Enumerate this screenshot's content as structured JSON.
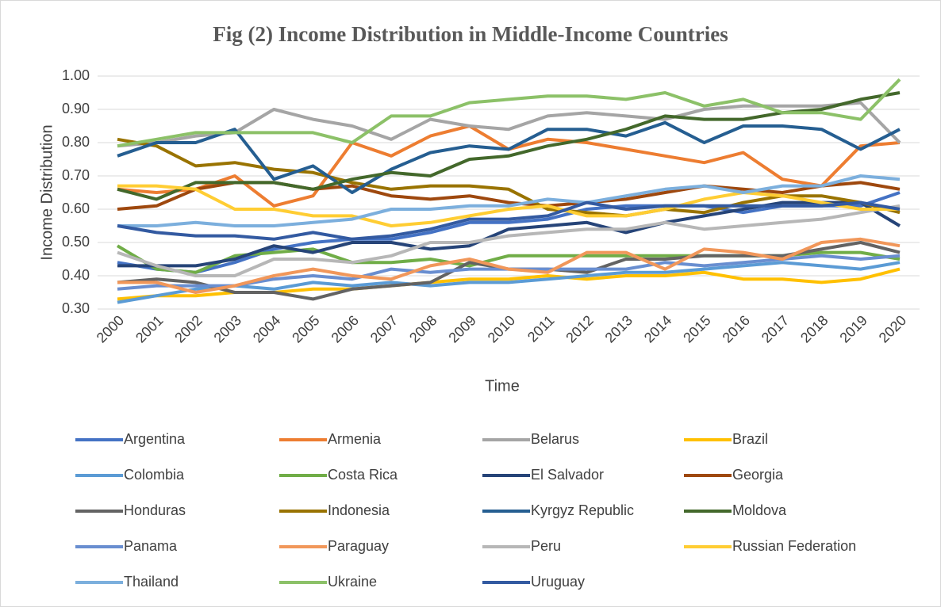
{
  "chart_data": {
    "type": "line",
    "title": "Fig (2) Income Distribution in Middle-Income Countries",
    "x_label": "Time",
    "y_label": "Income Distribution",
    "categories": [
      "2000",
      "2001",
      "2002",
      "2003",
      "2004",
      "2005",
      "2006",
      "2007",
      "2008",
      "2009",
      "2010",
      "2011",
      "2012",
      "2013",
      "2014",
      "2015",
      "2016",
      "2017",
      "2018",
      "2019",
      "2020"
    ],
    "ylim": [
      0.3,
      1.0
    ],
    "yticks": [
      {
        "value": 0.3,
        "label": "0.30"
      },
      {
        "value": 0.4,
        "label": "0.40"
      },
      {
        "value": 0.5,
        "label": "0.50"
      },
      {
        "value": 0.6,
        "label": "0.60"
      },
      {
        "value": 0.7,
        "label": "0.70"
      },
      {
        "value": 0.8,
        "label": "0.80"
      },
      {
        "value": 0.9,
        "label": "0.90"
      },
      {
        "value": 1.0,
        "label": "1.00"
      }
    ],
    "grid": true,
    "series": [
      {
        "name": "Argentina",
        "color": "#4472c4",
        "values": [
          0.44,
          0.42,
          0.41,
          0.44,
          0.48,
          0.5,
          0.51,
          0.51,
          0.53,
          0.56,
          0.56,
          0.57,
          0.6,
          0.61,
          0.61,
          0.61,
          0.59,
          0.61,
          0.61,
          0.61,
          0.65
        ]
      },
      {
        "name": "Armenia",
        "color": "#ed7d31",
        "values": [
          0.66,
          0.65,
          0.66,
          0.7,
          0.61,
          0.64,
          0.8,
          0.76,
          0.82,
          0.85,
          0.78,
          0.81,
          0.8,
          0.78,
          0.76,
          0.74,
          0.77,
          0.69,
          0.67,
          0.79,
          0.8
        ]
      },
      {
        "name": "Belarus",
        "color": "#a5a5a5",
        "values": [
          0.79,
          0.8,
          0.82,
          0.83,
          0.9,
          0.87,
          0.85,
          0.81,
          0.87,
          0.85,
          0.84,
          0.88,
          0.89,
          0.88,
          0.87,
          0.9,
          0.91,
          0.91,
          0.91,
          0.92,
          0.8
        ]
      },
      {
        "name": "Brazil",
        "color": "#ffc000",
        "values": [
          0.33,
          0.34,
          0.34,
          0.35,
          0.35,
          0.36,
          0.36,
          0.37,
          0.38,
          0.39,
          0.39,
          0.4,
          0.39,
          0.4,
          0.4,
          0.41,
          0.39,
          0.39,
          0.38,
          0.39,
          0.42
        ]
      },
      {
        "name": "Colombia",
        "color": "#5b9bd5",
        "values": [
          0.32,
          0.34,
          0.36,
          0.37,
          0.36,
          0.38,
          0.37,
          0.38,
          0.37,
          0.38,
          0.38,
          0.39,
          0.4,
          0.41,
          0.41,
          0.42,
          0.43,
          0.44,
          0.43,
          0.42,
          0.44
        ]
      },
      {
        "name": "Costa Rica",
        "color": "#70ad47",
        "values": [
          0.49,
          0.42,
          0.41,
          0.46,
          0.47,
          0.48,
          0.44,
          0.44,
          0.45,
          0.43,
          0.46,
          0.46,
          0.46,
          0.46,
          0.46,
          0.46,
          0.46,
          0.46,
          0.47,
          0.47,
          0.45
        ]
      },
      {
        "name": "El Salvador",
        "color": "#264478",
        "values": [
          0.43,
          0.43,
          0.43,
          0.45,
          0.49,
          0.47,
          0.5,
          0.5,
          0.48,
          0.49,
          0.54,
          0.55,
          0.56,
          0.53,
          0.56,
          0.58,
          0.6,
          0.62,
          0.62,
          0.62,
          0.55
        ]
      },
      {
        "name": "Georgia",
        "color": "#9e480e",
        "values": [
          0.6,
          0.61,
          0.66,
          0.68,
          0.68,
          0.66,
          0.67,
          0.64,
          0.63,
          0.64,
          0.62,
          0.61,
          0.62,
          0.63,
          0.65,
          0.67,
          0.66,
          0.65,
          0.67,
          0.68,
          0.66
        ]
      },
      {
        "name": "Honduras",
        "color": "#636363",
        "values": [
          0.38,
          0.39,
          0.38,
          0.35,
          0.35,
          0.33,
          0.36,
          0.37,
          0.38,
          0.44,
          0.42,
          0.42,
          0.41,
          0.45,
          0.45,
          0.46,
          0.46,
          0.46,
          0.48,
          0.5,
          0.47
        ]
      },
      {
        "name": "Indonesia",
        "color": "#997300",
        "values": [
          0.81,
          0.79,
          0.73,
          0.74,
          0.72,
          0.71,
          0.68,
          0.66,
          0.67,
          0.67,
          0.66,
          0.6,
          0.59,
          0.58,
          0.6,
          0.59,
          0.62,
          0.64,
          0.64,
          0.62,
          0.59
        ]
      },
      {
        "name": "Kyrgyz Republic",
        "color": "#255e91",
        "values": [
          0.76,
          0.8,
          0.8,
          0.84,
          0.69,
          0.73,
          0.65,
          0.72,
          0.77,
          0.79,
          0.78,
          0.84,
          0.84,
          0.82,
          0.86,
          0.8,
          0.85,
          0.85,
          0.84,
          0.78,
          0.84
        ]
      },
      {
        "name": "Moldova",
        "color": "#43682b",
        "values": [
          0.66,
          0.63,
          0.68,
          0.68,
          0.68,
          0.66,
          0.69,
          0.71,
          0.7,
          0.75,
          0.76,
          0.79,
          0.81,
          0.84,
          0.88,
          0.87,
          0.87,
          0.89,
          0.9,
          0.93,
          0.95
        ]
      },
      {
        "name": "Panama",
        "color": "#698ed0",
        "values": [
          0.36,
          0.37,
          0.37,
          0.37,
          0.39,
          0.4,
          0.39,
          0.42,
          0.41,
          0.42,
          0.42,
          0.42,
          0.42,
          0.42,
          0.44,
          0.43,
          0.44,
          0.45,
          0.46,
          0.45,
          0.46
        ]
      },
      {
        "name": "Paraguay",
        "color": "#f1975a",
        "values": [
          0.38,
          0.38,
          0.35,
          0.37,
          0.4,
          0.42,
          0.4,
          0.39,
          0.43,
          0.45,
          0.42,
          0.41,
          0.47,
          0.47,
          0.42,
          0.48,
          0.47,
          0.45,
          0.5,
          0.51,
          0.49
        ]
      },
      {
        "name": "Peru",
        "color": "#b7b7b7",
        "values": [
          0.47,
          0.43,
          0.4,
          0.4,
          0.45,
          0.45,
          0.44,
          0.46,
          0.5,
          0.5,
          0.52,
          0.53,
          0.54,
          0.54,
          0.56,
          0.54,
          0.55,
          0.56,
          0.57,
          0.59,
          0.61
        ]
      },
      {
        "name": "Russian Federation",
        "color": "#ffcd33",
        "values": [
          0.67,
          0.67,
          0.66,
          0.6,
          0.6,
          0.58,
          0.58,
          0.55,
          0.56,
          0.58,
          0.6,
          0.61,
          0.58,
          0.58,
          0.6,
          0.63,
          0.65,
          0.64,
          0.62,
          0.6,
          0.6
        ]
      },
      {
        "name": "Thailand",
        "color": "#7cafdd",
        "values": [
          0.55,
          0.55,
          0.56,
          0.55,
          0.55,
          0.56,
          0.57,
          0.6,
          0.6,
          0.61,
          0.61,
          0.63,
          0.62,
          0.64,
          0.66,
          0.67,
          0.65,
          0.67,
          0.67,
          0.7,
          0.69
        ]
      },
      {
        "name": "Ukraine",
        "color": "#8cc168",
        "values": [
          0.79,
          0.81,
          0.83,
          0.83,
          0.83,
          0.83,
          0.8,
          0.88,
          0.88,
          0.92,
          0.93,
          0.94,
          0.94,
          0.93,
          0.95,
          0.91,
          0.93,
          0.89,
          0.89,
          0.87,
          0.99
        ]
      },
      {
        "name": "Uruguay",
        "color": "#335aa1",
        "values": [
          0.55,
          0.53,
          0.52,
          0.52,
          0.51,
          0.53,
          0.51,
          0.52,
          0.54,
          0.57,
          0.57,
          0.58,
          0.62,
          0.6,
          0.61,
          0.61,
          0.61,
          0.61,
          0.61,
          0.62,
          0.6
        ]
      }
    ]
  }
}
